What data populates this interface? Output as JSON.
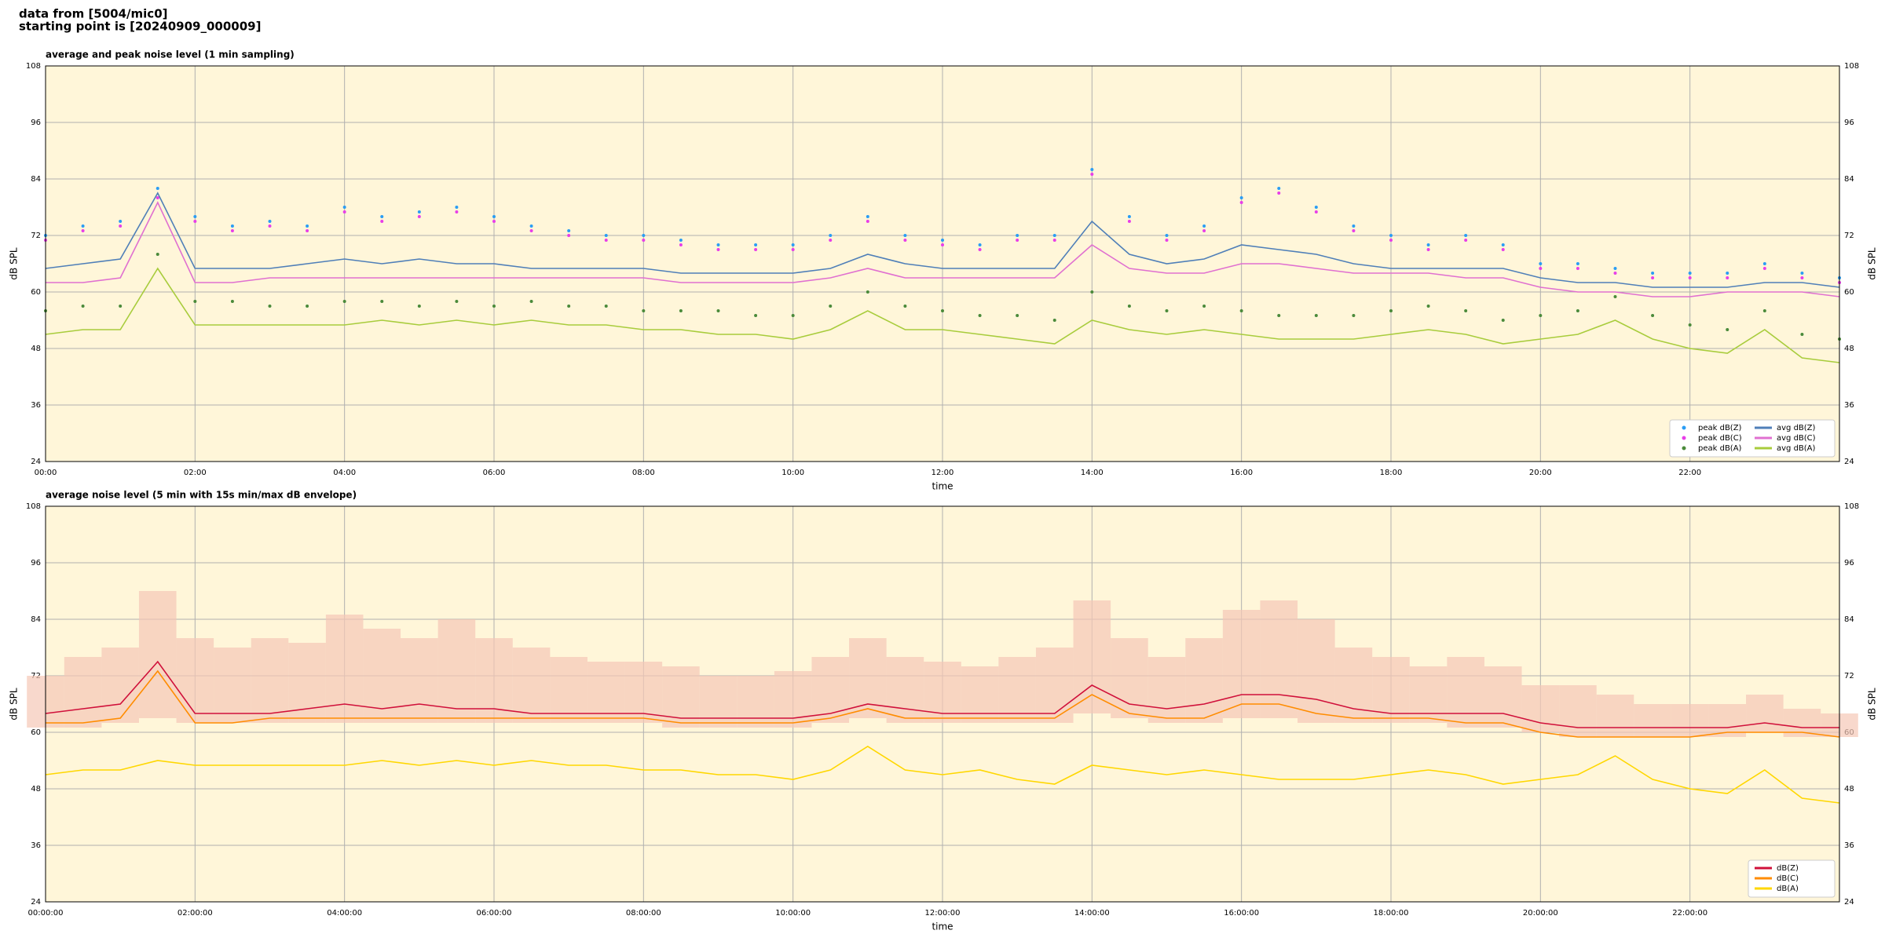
{
  "header": {
    "line1": "data from [5004/mic0]",
    "line2": "starting point is [20240909_000009]"
  },
  "chart_data": [
    {
      "type": "line",
      "title": "average and peak noise level (1 min sampling)",
      "xlabel": "time",
      "ylabel": "dB SPL",
      "x": [
        0,
        0.5,
        1,
        1.5,
        2,
        2.5,
        3,
        3.5,
        4,
        4.5,
        5,
        5.5,
        6,
        6.5,
        7,
        7.5,
        8,
        8.5,
        9,
        9.5,
        10,
        10.5,
        11,
        11.5,
        12,
        12.5,
        13,
        13.5,
        14,
        14.5,
        15,
        15.5,
        16,
        16.5,
        17,
        17.5,
        18,
        18.5,
        19,
        19.5,
        20,
        20.5,
        21,
        21.5,
        22,
        22.5,
        23,
        23.5,
        24
      ],
      "xlim": [
        0,
        24
      ],
      "xticks": [
        {
          "value": 0,
          "label": "00:00"
        },
        {
          "value": 2,
          "label": "02:00"
        },
        {
          "value": 4,
          "label": "04:00"
        },
        {
          "value": 6,
          "label": "06:00"
        },
        {
          "value": 8,
          "label": "08:00"
        },
        {
          "value": 10,
          "label": "10:00"
        },
        {
          "value": 12,
          "label": "12:00"
        },
        {
          "value": 14,
          "label": "14:00"
        },
        {
          "value": 16,
          "label": "16:00"
        },
        {
          "value": 18,
          "label": "18:00"
        },
        {
          "value": 20,
          "label": "20:00"
        },
        {
          "value": 22,
          "label": "22:00"
        }
      ],
      "ylim": [
        24,
        108
      ],
      "yticks": [
        24,
        36,
        48,
        60,
        72,
        84,
        96,
        108
      ],
      "grid": true,
      "legend": "lower right",
      "legend_columns": 2,
      "series": [
        {
          "name": "peak dB(Z)",
          "style": "points",
          "color": "#2a9df4",
          "values": [
            72,
            74,
            75,
            82,
            76,
            74,
            75,
            74,
            78,
            76,
            77,
            78,
            76,
            74,
            73,
            72,
            72,
            71,
            70,
            70,
            70,
            72,
            76,
            72,
            71,
            70,
            72,
            72,
            86,
            76,
            72,
            74,
            80,
            82,
            78,
            74,
            72,
            70,
            72,
            70,
            66,
            66,
            65,
            64,
            64,
            64,
            66,
            64,
            63
          ]
        },
        {
          "name": "peak dB(C)",
          "style": "points",
          "color": "#e83ee8",
          "values": [
            71,
            73,
            74,
            80,
            75,
            73,
            74,
            73,
            77,
            75,
            76,
            77,
            75,
            73,
            72,
            71,
            71,
            70,
            69,
            69,
            69,
            71,
            75,
            71,
            70,
            69,
            71,
            71,
            85,
            75,
            71,
            73,
            79,
            81,
            77,
            73,
            71,
            69,
            71,
            69,
            65,
            65,
            64,
            63,
            63,
            63,
            65,
            63,
            62
          ]
        },
        {
          "name": "peak dB(A)",
          "style": "points",
          "color": "#4a8a3a",
          "values": [
            56,
            57,
            57,
            68,
            58,
            58,
            57,
            57,
            58,
            58,
            57,
            58,
            57,
            58,
            57,
            57,
            56,
            56,
            56,
            55,
            55,
            57,
            60,
            57,
            56,
            55,
            55,
            54,
            60,
            57,
            56,
            57,
            56,
            55,
            55,
            55,
            56,
            57,
            56,
            54,
            55,
            56,
            59,
            55,
            53,
            52,
            56,
            51,
            50
          ]
        },
        {
          "name": "avg dB(Z)",
          "style": "line",
          "color": "#4f7fb8",
          "values": [
            65,
            66,
            67,
            81,
            65,
            65,
            65,
            66,
            67,
            66,
            67,
            66,
            66,
            65,
            65,
            65,
            65,
            64,
            64,
            64,
            64,
            65,
            68,
            66,
            65,
            65,
            65,
            65,
            75,
            68,
            66,
            67,
            70,
            69,
            68,
            66,
            65,
            65,
            65,
            65,
            63,
            62,
            62,
            61,
            61,
            61,
            62,
            62,
            61
          ]
        },
        {
          "name": "avg dB(C)",
          "style": "line",
          "color": "#e070d0",
          "values": [
            62,
            62,
            63,
            79,
            62,
            62,
            63,
            63,
            63,
            63,
            63,
            63,
            63,
            63,
            63,
            63,
            63,
            62,
            62,
            62,
            62,
            63,
            65,
            63,
            63,
            63,
            63,
            63,
            70,
            65,
            64,
            64,
            66,
            66,
            65,
            64,
            64,
            64,
            63,
            63,
            61,
            60,
            60,
            59,
            59,
            60,
            60,
            60,
            59
          ]
        },
        {
          "name": "avg dB(A)",
          "style": "line",
          "color": "#a8cc3c",
          "values": [
            51,
            52,
            52,
            65,
            53,
            53,
            53,
            53,
            53,
            54,
            53,
            54,
            53,
            54,
            53,
            53,
            52,
            52,
            51,
            51,
            50,
            52,
            56,
            52,
            52,
            51,
            50,
            49,
            54,
            52,
            51,
            52,
            51,
            50,
            50,
            50,
            51,
            52,
            51,
            49,
            50,
            51,
            54,
            50,
            48,
            47,
            52,
            46,
            45
          ]
        }
      ]
    },
    {
      "type": "line",
      "title": "average noise level (5 min with 15s min/max dB envelope)",
      "xlabel": "time",
      "ylabel": "dB SPL",
      "x": [
        0,
        0.5,
        1,
        1.5,
        2,
        2.5,
        3,
        3.5,
        4,
        4.5,
        5,
        5.5,
        6,
        6.5,
        7,
        7.5,
        8,
        8.5,
        9,
        9.5,
        10,
        10.5,
        11,
        11.5,
        12,
        12.5,
        13,
        13.5,
        14,
        14.5,
        15,
        15.5,
        16,
        16.5,
        17,
        17.5,
        18,
        18.5,
        19,
        19.5,
        20,
        20.5,
        21,
        21.5,
        22,
        22.5,
        23,
        23.5,
        24
      ],
      "xlim": [
        0,
        24
      ],
      "xticks": [
        {
          "value": 0,
          "label": "00:00:00"
        },
        {
          "value": 2,
          "label": "02:00:00"
        },
        {
          "value": 4,
          "label": "04:00:00"
        },
        {
          "value": 6,
          "label": "06:00:00"
        },
        {
          "value": 8,
          "label": "08:00:00"
        },
        {
          "value": 10,
          "label": "10:00:00"
        },
        {
          "value": 12,
          "label": "12:00:00"
        },
        {
          "value": 14,
          "label": "14:00:00"
        },
        {
          "value": 16,
          "label": "16:00:00"
        },
        {
          "value": 18,
          "label": "18:00:00"
        },
        {
          "value": 20,
          "label": "20:00:00"
        },
        {
          "value": 22,
          "label": "22:00:00"
        }
      ],
      "ylim": [
        24,
        108
      ],
      "yticks": [
        24,
        36,
        48,
        60,
        72,
        84,
        96,
        108
      ],
      "grid": true,
      "legend": "lower right",
      "legend_columns": 1,
      "envelope": {
        "color": "#f5c8b6",
        "lower": [
          61,
          61,
          62,
          63,
          62,
          62,
          62,
          62,
          62,
          62,
          62,
          62,
          62,
          62,
          62,
          62,
          62,
          61,
          61,
          61,
          61,
          62,
          63,
          62,
          62,
          62,
          62,
          62,
          64,
          63,
          62,
          62,
          63,
          63,
          62,
          62,
          62,
          62,
          61,
          61,
          60,
          59,
          59,
          59,
          59,
          59,
          60,
          59,
          59
        ],
        "upper": [
          72,
          76,
          78,
          90,
          80,
          78,
          80,
          79,
          85,
          82,
          80,
          84,
          80,
          78,
          76,
          75,
          75,
          74,
          72,
          72,
          73,
          76,
          80,
          76,
          75,
          74,
          76,
          78,
          88,
          80,
          76,
          80,
          86,
          88,
          84,
          78,
          76,
          74,
          76,
          74,
          70,
          70,
          68,
          66,
          66,
          66,
          68,
          65,
          64
        ]
      },
      "series": [
        {
          "name": "dB(Z)",
          "color": "#d0103a",
          "values": [
            64,
            65,
            66,
            75,
            64,
            64,
            64,
            65,
            66,
            65,
            66,
            65,
            65,
            64,
            64,
            64,
            64,
            63,
            63,
            63,
            63,
            64,
            66,
            65,
            64,
            64,
            64,
            64,
            70,
            66,
            65,
            66,
            68,
            68,
            67,
            65,
            64,
            64,
            64,
            64,
            62,
            61,
            61,
            61,
            61,
            61,
            62,
            61,
            61
          ]
        },
        {
          "name": "dB(C)",
          "color": "#ff8c00",
          "values": [
            62,
            62,
            63,
            73,
            62,
            62,
            63,
            63,
            63,
            63,
            63,
            63,
            63,
            63,
            63,
            63,
            63,
            62,
            62,
            62,
            62,
            63,
            65,
            63,
            63,
            63,
            63,
            63,
            68,
            64,
            63,
            63,
            66,
            66,
            64,
            63,
            63,
            63,
            62,
            62,
            60,
            59,
            59,
            59,
            59,
            60,
            60,
            60,
            59
          ]
        },
        {
          "name": "dB(A)",
          "color": "#ffd700",
          "values": [
            51,
            52,
            52,
            54,
            53,
            53,
            53,
            53,
            53,
            54,
            53,
            54,
            53,
            54,
            53,
            53,
            52,
            52,
            51,
            51,
            50,
            52,
            57,
            52,
            51,
            52,
            50,
            49,
            53,
            52,
            51,
            52,
            51,
            50,
            50,
            50,
            51,
            52,
            51,
            49,
            50,
            51,
            55,
            50,
            48,
            47,
            52,
            46,
            45
          ]
        }
      ]
    }
  ]
}
